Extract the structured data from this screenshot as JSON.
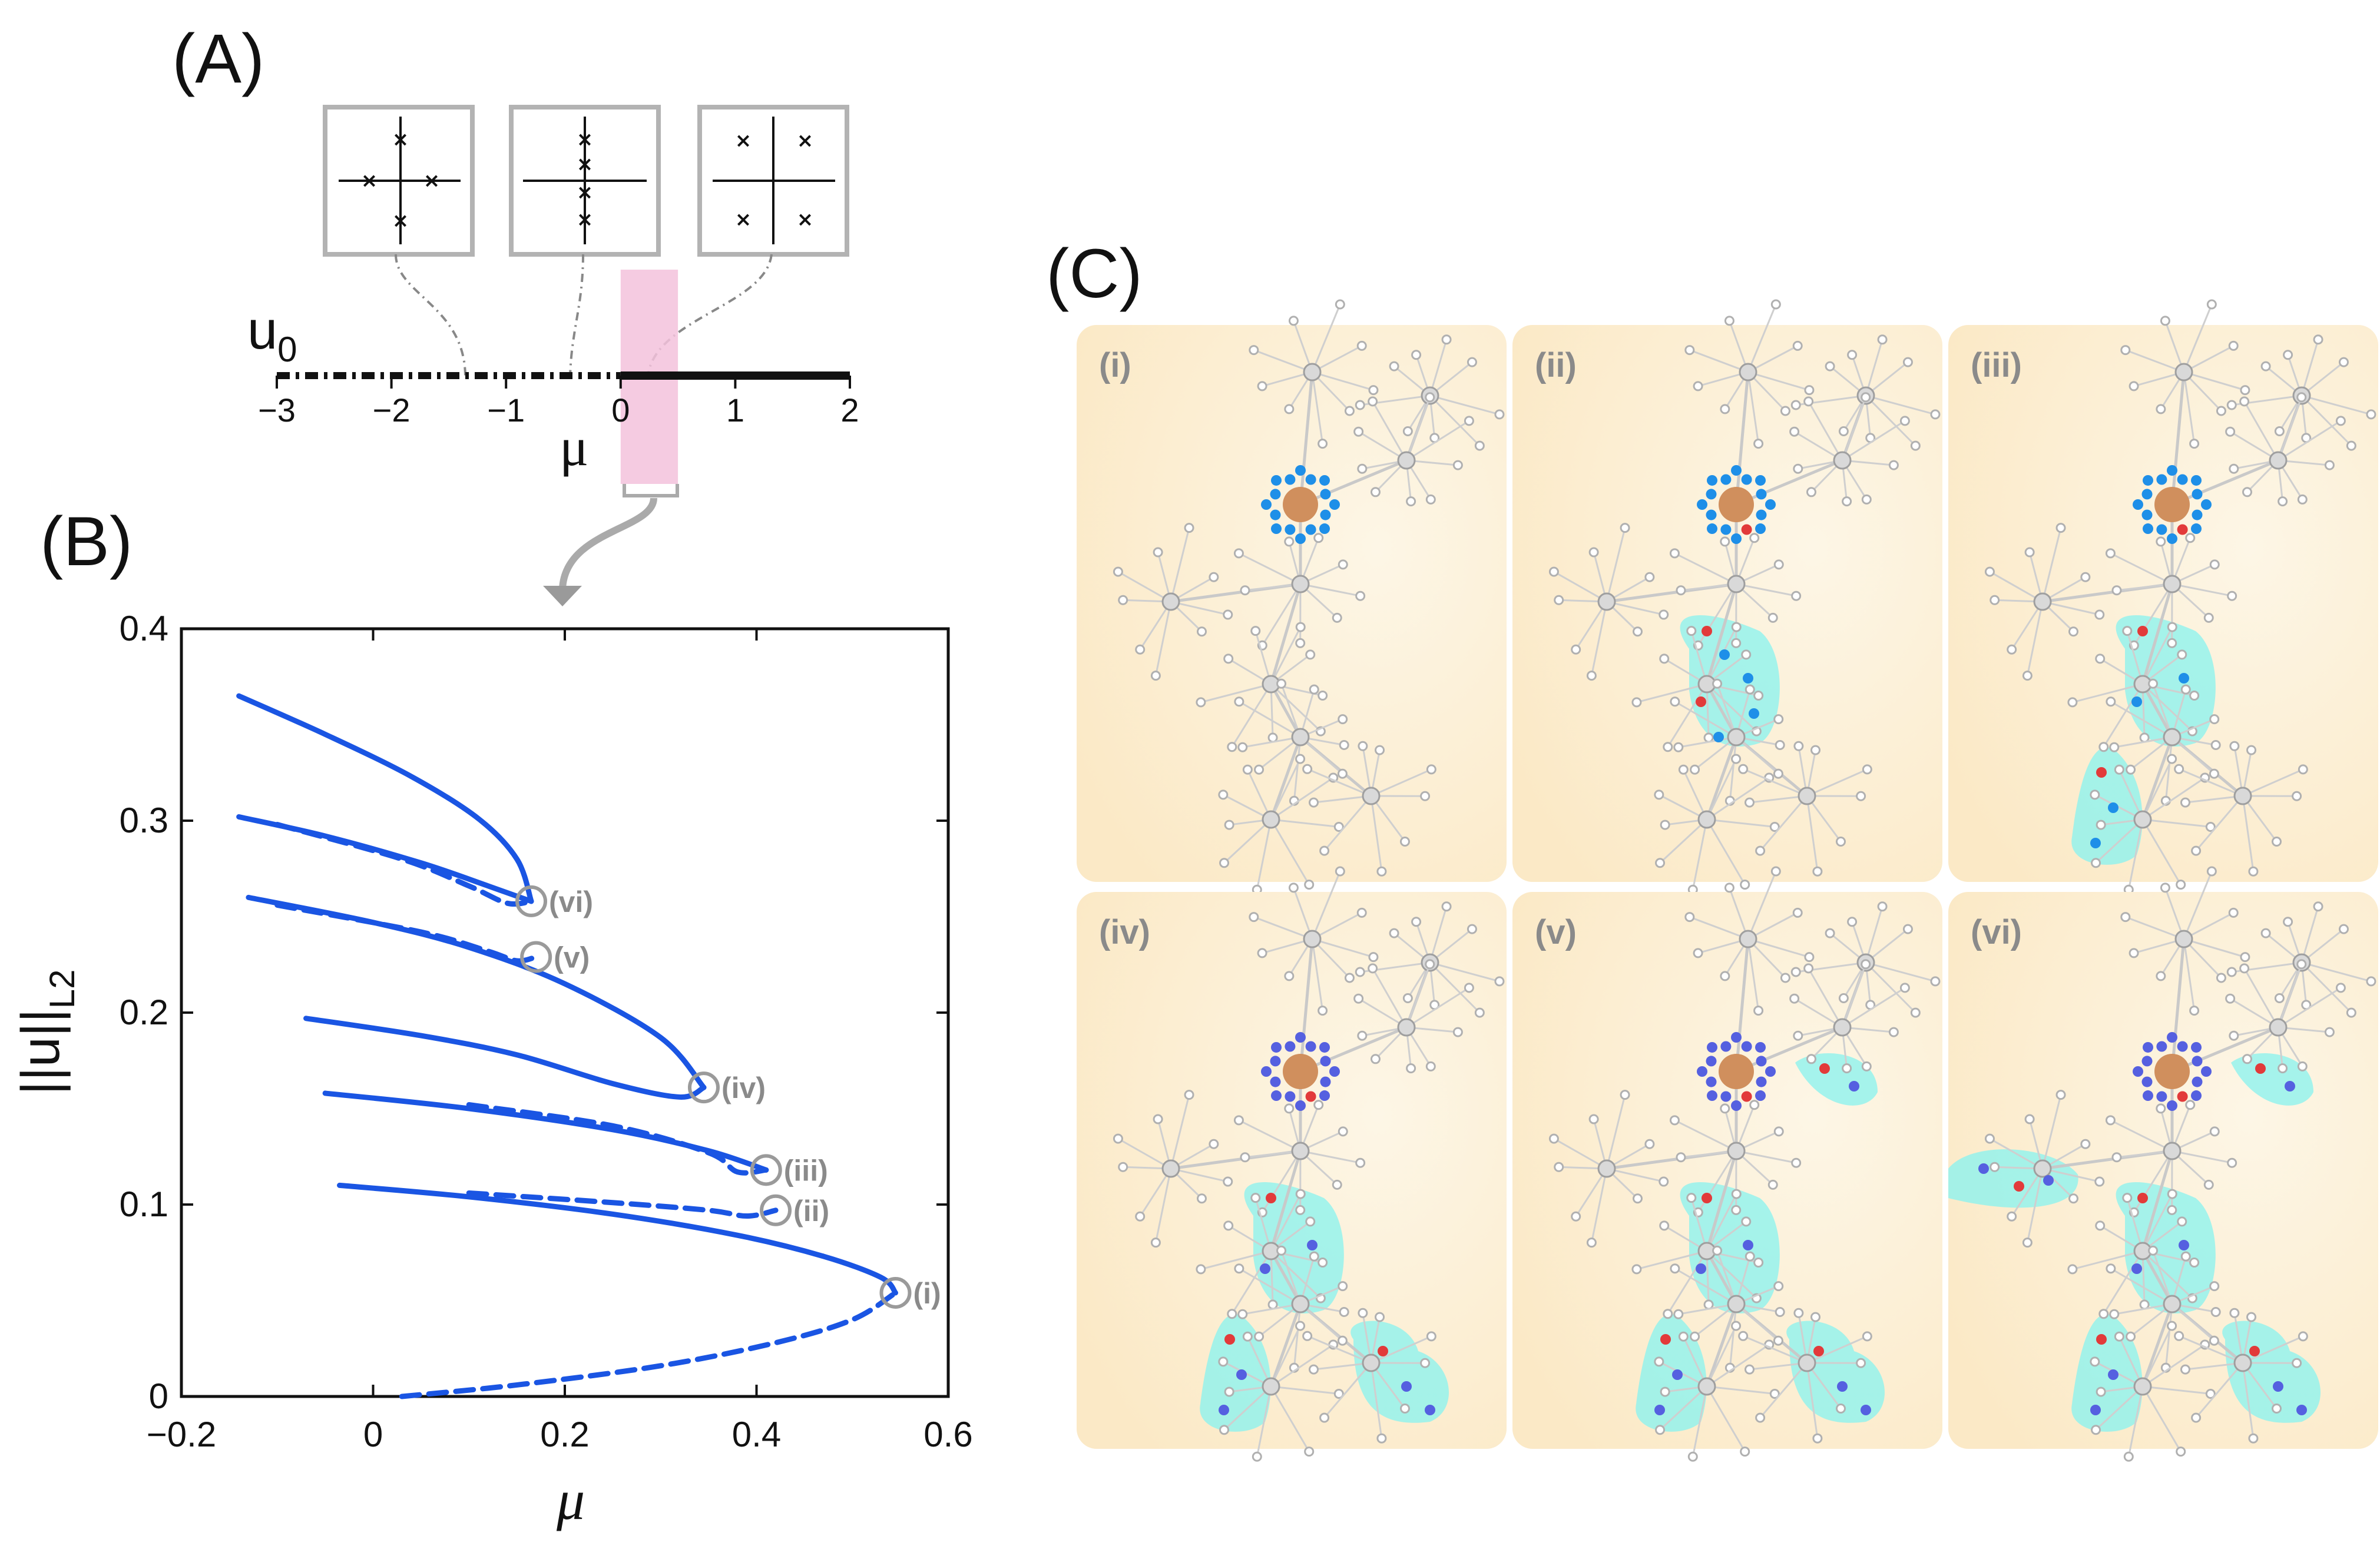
{
  "panels": {
    "A": "(A)",
    "B": "(B)",
    "C": "(C)"
  },
  "panelA": {
    "ylabel": "u",
    "ylabel_sub": "0",
    "xlabel": "μ",
    "ticks": [
      "−3",
      "−2",
      "−1",
      "0",
      "1",
      "2"
    ],
    "dash_dot_range": [
      -3,
      0
    ],
    "solid_range": [
      0,
      2
    ],
    "highlight_range": [
      0,
      0.5
    ],
    "insets": [
      "four-cross-eigenvalues",
      "four-imaginary-axis-eigenvalues",
      "four-complex-quadrant-eigenvalues"
    ]
  },
  "chart_data": {
    "type": "line",
    "xlabel": "μ",
    "ylabel": "||u||",
    "ylabel_sub": "L2",
    "xlim": [
      -0.2,
      0.6
    ],
    "ylim": [
      0,
      0.4
    ],
    "xticks": [
      "−0.2",
      "0",
      "0.2",
      "0.4",
      "0.6"
    ],
    "yticks": [
      "0",
      "0.1",
      "0.2",
      "0.3",
      "0.4"
    ],
    "fold_points": [
      {
        "label": "(i)",
        "x": 0.545,
        "y": 0.054
      },
      {
        "label": "(ii)",
        "x": 0.42,
        "y": 0.097
      },
      {
        "label": "(iii)",
        "x": 0.41,
        "y": 0.118
      },
      {
        "label": "(iv)",
        "x": 0.345,
        "y": 0.161
      },
      {
        "label": "(v)",
        "x": 0.17,
        "y": 0.229
      },
      {
        "label": "(vi)",
        "x": 0.165,
        "y": 0.258
      }
    ],
    "series": [
      {
        "style": "dashed",
        "x": [
          0.03,
          0.15,
          0.3,
          0.42,
          0.5,
          0.545
        ],
        "y": [
          0.0,
          0.006,
          0.016,
          0.028,
          0.04,
          0.054
        ]
      },
      {
        "style": "solid",
        "x": [
          -0.035,
          0.1,
          0.25,
          0.38,
          0.47,
          0.53,
          0.545
        ],
        "y": [
          0.11,
          0.104,
          0.095,
          0.084,
          0.073,
          0.062,
          0.054
        ]
      },
      {
        "style": "dashed",
        "x": [
          0.1,
          0.25,
          0.35,
          0.39,
          0.42
        ],
        "y": [
          0.106,
          0.101,
          0.097,
          0.094,
          0.097
        ]
      },
      {
        "style": "solid",
        "x": [
          -0.05,
          0.1,
          0.25,
          0.35,
          0.41
        ],
        "y": [
          0.158,
          0.15,
          0.139,
          0.128,
          0.118
        ]
      },
      {
        "style": "dashed",
        "x": [
          0.1,
          0.25,
          0.35,
          0.38,
          0.41
        ],
        "y": [
          0.152,
          0.141,
          0.127,
          0.117,
          0.118
        ]
      },
      {
        "style": "solid",
        "x": [
          -0.07,
          0.05,
          0.15,
          0.25,
          0.32,
          0.345
        ],
        "y": [
          0.197,
          0.188,
          0.178,
          0.163,
          0.156,
          0.161
        ]
      },
      {
        "style": "solid",
        "x": [
          -0.13,
          0.0,
          0.1,
          0.2,
          0.3,
          0.345
        ],
        "y": [
          0.26,
          0.247,
          0.234,
          0.215,
          0.187,
          0.161
        ]
      },
      {
        "style": "dashed",
        "x": [
          -0.1,
          0.05,
          0.12,
          0.15,
          0.17
        ],
        "y": [
          0.256,
          0.242,
          0.232,
          0.227,
          0.229
        ]
      },
      {
        "style": "solid",
        "x": [
          -0.14,
          -0.05,
          0.05,
          0.12,
          0.165
        ],
        "y": [
          0.302,
          0.292,
          0.278,
          0.266,
          0.258
        ]
      },
      {
        "style": "dashed",
        "x": [
          -0.1,
          0.03,
          0.1,
          0.14,
          0.165
        ],
        "y": [
          0.298,
          0.28,
          0.266,
          0.257,
          0.258
        ]
      },
      {
        "style": "solid",
        "x": [
          -0.14,
          -0.05,
          0.04,
          0.11,
          0.15,
          0.165
        ],
        "y": [
          0.365,
          0.345,
          0.323,
          0.301,
          0.28,
          0.258
        ]
      }
    ]
  },
  "panelC": {
    "subpanels": [
      "(i)",
      "(ii)",
      "(iii)",
      "(iv)",
      "(v)",
      "(vi)"
    ],
    "colors": {
      "background": "#fdf2d9",
      "node": "#b7b7b7",
      "core": "#d08f5d",
      "patch": "#8ff2ee",
      "dot_light": "#1e8fe8",
      "dot_blue": "#5560e0",
      "dot_red": "#e23a3a"
    }
  }
}
